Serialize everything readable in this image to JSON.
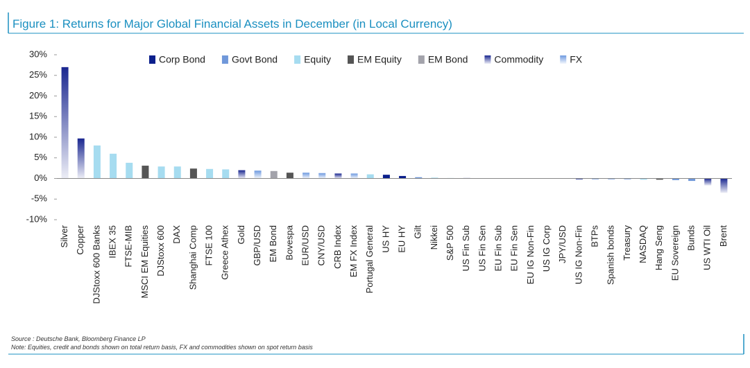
{
  "chart_data": {
    "type": "bar",
    "title": "Figure 1: Returns for Major Global Financial Assets in December (in Local Currency)",
    "categories": [
      "Silver",
      "Copper",
      "DJStoxx 600 Banks",
      "IBEX 35",
      "FTSE-MIB",
      "MSCI EM Equities",
      "DJStoxx 600",
      "DAX",
      "Shanghai Comp",
      "FTSE 100",
      "Greece Athex",
      "Gold",
      "GBP/USD",
      "EM Bond",
      "Bovespa",
      "EUR/USD",
      "CNY/USD",
      "CRB Index",
      "EM FX Index",
      "Portugal General",
      "US HY",
      "EU HY",
      "Gilt",
      "Nikkei",
      "S&P 500",
      "US Fin Sub",
      "US Fin Sen",
      "EU Fin Sub",
      "EU Fin Sen",
      "EU IG Non-Fin",
      "US IG Corp",
      "JPY/USD",
      "US IG Non-Fin",
      "BTPs",
      "Spanish bonds",
      "Treasury",
      "NASDAQ",
      "Hang Seng",
      "EU Sovereign",
      "Bunds",
      "US WTI Oil",
      "Brent"
    ],
    "series": [
      {
        "name": "Corp Bond",
        "color": "#0b1f8c",
        "values": [
          null,
          null,
          null,
          null,
          null,
          null,
          null,
          null,
          null,
          null,
          null,
          null,
          null,
          null,
          null,
          null,
          null,
          null,
          null,
          null,
          0.9,
          0.6,
          null,
          null,
          null,
          0.1,
          0.05,
          0.05,
          0.05,
          0,
          -0.05,
          null,
          -0.2,
          null,
          null,
          null,
          null,
          null,
          null,
          null,
          null,
          null
        ]
      },
      {
        "name": "Govt Bond",
        "color": "#7098da",
        "values": [
          null,
          null,
          null,
          null,
          null,
          null,
          null,
          null,
          null,
          null,
          null,
          null,
          null,
          null,
          null,
          null,
          null,
          null,
          null,
          null,
          null,
          null,
          0.3,
          null,
          null,
          null,
          null,
          null,
          null,
          null,
          null,
          null,
          null,
          -0.2,
          -0.2,
          -0.2,
          null,
          null,
          -0.4,
          -0.6,
          null,
          null
        ]
      },
      {
        "name": "Equity",
        "color": "#a6dcf0",
        "values": [
          null,
          null,
          8,
          6,
          3.8,
          null,
          2.9,
          2.9,
          null,
          2.3,
          2.2,
          null,
          null,
          null,
          null,
          null,
          null,
          null,
          null,
          1.0,
          null,
          null,
          null,
          0.2,
          0.1,
          null,
          null,
          null,
          null,
          null,
          null,
          null,
          null,
          null,
          null,
          null,
          -0.3,
          null,
          null,
          null,
          null,
          null
        ]
      },
      {
        "name": "EM Equity",
        "color": "#555555",
        "values": [
          null,
          null,
          null,
          null,
          null,
          3.1,
          null,
          null,
          2.4,
          null,
          null,
          null,
          null,
          null,
          1.4,
          null,
          null,
          null,
          null,
          null,
          null,
          null,
          null,
          null,
          null,
          null,
          null,
          null,
          null,
          null,
          null,
          null,
          null,
          null,
          null,
          null,
          null,
          -0.3,
          null,
          null,
          null,
          null
        ]
      },
      {
        "name": "EM Bond",
        "color": "#a3a3ab",
        "values": [
          null,
          null,
          null,
          null,
          null,
          null,
          null,
          null,
          null,
          null,
          null,
          null,
          null,
          1.8,
          null,
          null,
          null,
          null,
          null,
          null,
          null,
          null,
          null,
          null,
          null,
          null,
          null,
          null,
          null,
          null,
          null,
          null,
          null,
          null,
          null,
          null,
          null,
          null,
          null,
          null,
          null,
          null
        ]
      },
      {
        "name": "Commodity",
        "color": "#1a2790",
        "gradient": true,
        "values": [
          27,
          9.7,
          null,
          null,
          null,
          null,
          null,
          null,
          null,
          null,
          null,
          2.0,
          null,
          null,
          null,
          null,
          null,
          1.2,
          null,
          null,
          null,
          null,
          null,
          null,
          null,
          null,
          null,
          null,
          null,
          null,
          null,
          null,
          null,
          null,
          null,
          null,
          null,
          null,
          null,
          null,
          -1.7,
          -3.5
        ]
      },
      {
        "name": "FX",
        "color": "#6f9ae0",
        "gradient": true,
        "values": [
          null,
          null,
          null,
          null,
          null,
          null,
          null,
          null,
          null,
          null,
          null,
          null,
          1.9,
          null,
          null,
          1.4,
          1.3,
          null,
          1.2,
          null,
          null,
          null,
          null,
          null,
          null,
          null,
          null,
          null,
          null,
          null,
          null,
          -0.1,
          null,
          null,
          null,
          null,
          null,
          null,
          null,
          null,
          null,
          null
        ]
      }
    ],
    "ylim": [
      -10,
      30
    ],
    "yticks": [
      {
        "value": -10,
        "label": "-10%"
      },
      {
        "value": -5,
        "label": "-5%"
      },
      {
        "value": 0,
        "label": "0%"
      },
      {
        "value": 5,
        "label": "5%"
      },
      {
        "value": 10,
        "label": "10%"
      },
      {
        "value": 15,
        "label": "15%"
      },
      {
        "value": 20,
        "label": "20%"
      },
      {
        "value": 25,
        "label": "25%"
      },
      {
        "value": 30,
        "label": "30%"
      }
    ],
    "source": "Source : Deutsche Bank, Bloomberg Finance LP",
    "note": "Note: Equities, credit and bonds shown on total return basis, FX and commodities shown on spot return basis"
  }
}
